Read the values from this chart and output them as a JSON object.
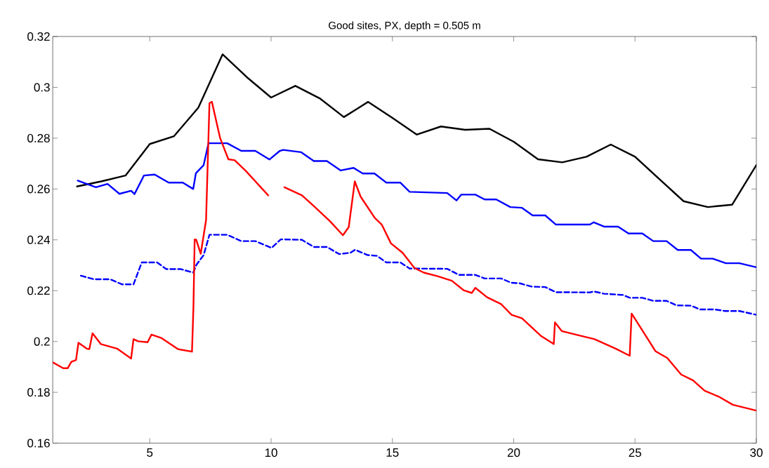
{
  "chart_data": {
    "type": "line",
    "title": "Good sites, PX, depth = 0.505 m",
    "xlim": [
      1,
      30
    ],
    "xticks": [
      5,
      10,
      15,
      20,
      25,
      30
    ],
    "ylim": [
      0.16,
      0.32
    ],
    "yticks": [
      0.16,
      0.18,
      0.2,
      0.22,
      0.24,
      0.26,
      0.28,
      0.3,
      0.32
    ],
    "grid": false,
    "series": [
      {
        "color": "#000000",
        "line_style": "solid",
        "x": [
          2,
          3,
          4,
          5,
          6,
          7,
          8,
          9,
          10,
          11,
          12,
          13,
          14,
          15,
          16,
          17,
          18,
          19,
          20,
          21,
          22,
          23,
          24,
          25,
          26,
          27,
          28,
          29,
          30
        ],
        "values": [
          0.261,
          0.263,
          0.2653,
          0.2777,
          0.2808,
          0.292,
          0.313,
          0.304,
          0.296,
          0.3006,
          0.2957,
          0.2883,
          0.2943,
          0.288,
          0.2814,
          0.2846,
          0.2833,
          0.2837,
          0.2786,
          0.2717,
          0.2705,
          0.2727,
          0.2775,
          0.2727,
          0.2639,
          0.2552,
          0.2529,
          0.2538,
          0.2694
        ]
      },
      {
        "color": "#0000ff",
        "line_style": "solid",
        "x": [
          2.03,
          2.78,
          3.26,
          3.75,
          4.23,
          4.37,
          4.76,
          5.2,
          5.78,
          6.36,
          6.79,
          6.9,
          7.22,
          7.42,
          8.19,
          8.77,
          9.35,
          9.93,
          10.36,
          10.5,
          11.23,
          11.76,
          12.3,
          12.87,
          13.4,
          13.78,
          14.26,
          14.75,
          15.33,
          15.71,
          17.26,
          17.64,
          17.84,
          18.42,
          18.8,
          19.28,
          19.86,
          20.34,
          20.78,
          21.3,
          21.74,
          23.14,
          23.3,
          23.72,
          24.3,
          24.73,
          25.3,
          25.75,
          26.3,
          26.76,
          27.3,
          27.72,
          28.2,
          28.74,
          29.3,
          30
        ],
        "values": [
          0.2633,
          0.2607,
          0.262,
          0.2581,
          0.2593,
          0.258,
          0.2653,
          0.2657,
          0.2625,
          0.2625,
          0.26,
          0.2662,
          0.2694,
          0.278,
          0.278,
          0.275,
          0.275,
          0.2716,
          0.275,
          0.2754,
          0.2745,
          0.271,
          0.271,
          0.2673,
          0.2683,
          0.2661,
          0.2661,
          0.2625,
          0.2625,
          0.2589,
          0.2584,
          0.2555,
          0.2578,
          0.2578,
          0.2559,
          0.2559,
          0.2529,
          0.2526,
          0.2496,
          0.2496,
          0.246,
          0.246,
          0.2469,
          0.2452,
          0.2452,
          0.2425,
          0.2425,
          0.2395,
          0.2395,
          0.236,
          0.236,
          0.2326,
          0.2326,
          0.2308,
          0.2308,
          0.2292
        ]
      },
      {
        "color": "#0000ff",
        "line_style": "dashed",
        "x": [
          2.16,
          2.69,
          3.36,
          3.85,
          4.33,
          4.67,
          5.3,
          5.68,
          6.26,
          6.79,
          6.93,
          7.22,
          7.46,
          8.19,
          8.77,
          9.35,
          10.02,
          10.4,
          11.27,
          11.76,
          12.3,
          12.8,
          13.27,
          13.46,
          13.98,
          14.36,
          14.75,
          15.33,
          15.71,
          17.26,
          17.74,
          18.42,
          18.8,
          19.48,
          19.9,
          20.25,
          20.73,
          21.3,
          21.74,
          23.14,
          23.3,
          23.72,
          24.5,
          24.78,
          25.3,
          25.75,
          26.3,
          26.71,
          27.3,
          27.68,
          28.3,
          28.7,
          29.3,
          30
        ],
        "values": [
          0.2259,
          0.2245,
          0.2245,
          0.2225,
          0.2225,
          0.2311,
          0.2311,
          0.2285,
          0.2285,
          0.2271,
          0.2303,
          0.234,
          0.242,
          0.242,
          0.2395,
          0.2395,
          0.2368,
          0.2402,
          0.24,
          0.2372,
          0.2372,
          0.2344,
          0.2349,
          0.2361,
          0.234,
          0.2337,
          0.2311,
          0.2311,
          0.2287,
          0.2286,
          0.2262,
          0.2262,
          0.2248,
          0.2248,
          0.2231,
          0.2229,
          0.2216,
          0.2214,
          0.2194,
          0.2193,
          0.2197,
          0.2188,
          0.2183,
          0.2172,
          0.2172,
          0.216,
          0.216,
          0.2142,
          0.2141,
          0.2126,
          0.2126,
          0.212,
          0.212,
          0.2105
        ]
      },
      {
        "color": "#ff0000",
        "line_style": "solid",
        "x": [
          1,
          1.43,
          1.62,
          1.77,
          1.96,
          2.06,
          2.4,
          2.51,
          2.64,
          2.98,
          3.65,
          4.23,
          4.33,
          4.52,
          4.91,
          5.07,
          5.49,
          6.16,
          6.74,
          6.8,
          6.85,
          6.91,
          7.1,
          7.32,
          7.46,
          7.56,
          7.9,
          8.24,
          8.5,
          8.96,
          9.88,
          10.2,
          10.55,
          11.27,
          11.76,
          12.43,
          12.96,
          13.2,
          13.45,
          13.69,
          14.27,
          14.56,
          14.94,
          15.42,
          15.91,
          16.29,
          16.86,
          17.45,
          17.93,
          18.27,
          18.42,
          18.9,
          19.48,
          19.91,
          20.34,
          21.12,
          21.65,
          21.7,
          21.98,
          22.56,
          23.33,
          24.2,
          24.78,
          24.86,
          25.26,
          25.84,
          26.33,
          26.9,
          27.39,
          27.87,
          28.45,
          29.03,
          30
        ],
        "values": [
          0.1918,
          0.1895,
          0.1895,
          0.192,
          0.1927,
          0.1995,
          0.1972,
          0.197,
          0.2032,
          0.199,
          0.1972,
          0.1933,
          0.2009,
          0.2001,
          0.1997,
          0.2027,
          0.2013,
          0.197,
          0.196,
          0.2137,
          0.2401,
          0.2401,
          0.2345,
          0.2478,
          0.2938,
          0.2943,
          0.28,
          0.2717,
          0.2713,
          0.2671,
          0.2575,
          null,
          0.2607,
          0.2575,
          0.2533,
          0.2473,
          0.2418,
          0.245,
          0.263,
          0.257,
          0.2487,
          0.246,
          0.2386,
          0.2349,
          0.2289,
          0.2271,
          0.2257,
          0.2239,
          0.2202,
          0.2191,
          0.2211,
          0.2174,
          0.2147,
          0.2105,
          0.2091,
          0.2022,
          0.199,
          0.2075,
          0.2041,
          0.2027,
          0.2009,
          0.1972,
          0.1944,
          0.211,
          0.205,
          0.1962,
          0.1935,
          0.187,
          0.1847,
          0.1806,
          0.1783,
          0.1751,
          0.1728
        ]
      }
    ]
  }
}
